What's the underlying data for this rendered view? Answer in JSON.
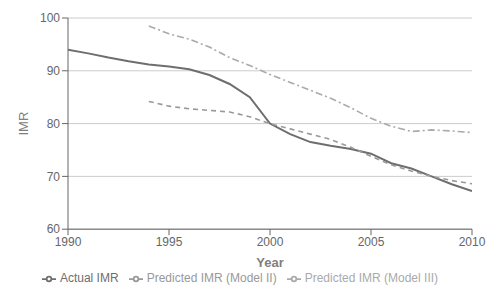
{
  "chart_data": {
    "type": "line",
    "xlabel": "Year",
    "ylabel": "IMR",
    "xlim": [
      1990,
      2010
    ],
    "ylim": [
      60,
      100
    ],
    "xticks": [
      1990,
      1995,
      2000,
      2005,
      2010
    ],
    "yticks": [
      60,
      70,
      80,
      90,
      100
    ],
    "grid": true,
    "series": [
      {
        "name": "Actual IMR",
        "color": "#6e6e6e",
        "line_style": "solid",
        "x": [
          1990,
          1991,
          1992,
          1993,
          1994,
          1995,
          1996,
          1997,
          1998,
          1999,
          2000,
          2001,
          2002,
          2003,
          2004,
          2005,
          2006,
          2007,
          2008,
          2009,
          2010
        ],
        "values": [
          94.0,
          93.3,
          92.5,
          91.8,
          91.2,
          90.8,
          90.3,
          89.2,
          87.5,
          85.0,
          80.0,
          78.0,
          76.5,
          75.8,
          75.2,
          74.3,
          72.5,
          71.5,
          70.0,
          68.5,
          67.2
        ]
      },
      {
        "name": "Predicted IMR (Model II)",
        "color": "#999999",
        "line_style": "dashed",
        "x": [
          1994,
          1995,
          1996,
          1997,
          1998,
          1999,
          2000,
          2001,
          2002,
          2003,
          2004,
          2005,
          2006,
          2007,
          2008,
          2009,
          2010
        ],
        "values": [
          84.2,
          83.3,
          82.8,
          82.5,
          82.2,
          81.3,
          80.0,
          79.0,
          78.0,
          77.0,
          75.5,
          73.8,
          72.2,
          71.0,
          70.0,
          69.2,
          68.6
        ]
      },
      {
        "name": "Predicted IMR (Model III)",
        "color": "#aaaaaa",
        "line_style": "dashdot",
        "x": [
          1994,
          1995,
          1996,
          1997,
          1998,
          1999,
          2000,
          2001,
          2002,
          2003,
          2004,
          2005,
          2006,
          2007,
          2008,
          2009,
          2010
        ],
        "values": [
          98.5,
          97.0,
          96.0,
          94.5,
          92.5,
          91.0,
          89.3,
          87.8,
          86.3,
          84.8,
          83.0,
          81.0,
          79.5,
          78.5,
          78.8,
          78.6,
          78.3
        ]
      }
    ]
  }
}
